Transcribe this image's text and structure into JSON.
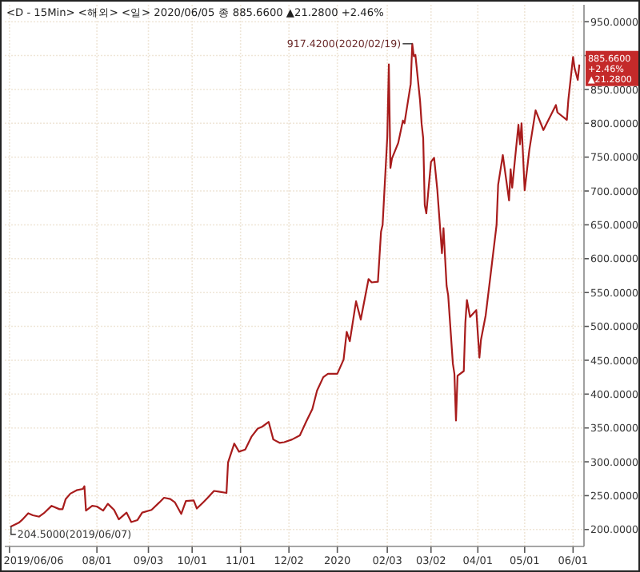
{
  "chart_data": {
    "type": "line",
    "title": "<D - 15Min> <해외> <일> 2020/06/05 종 885.6600 ▲21.2800 +2.46%",
    "xlim": [
      "2019-06-03",
      "2020-06-08"
    ],
    "xticks": [
      {
        "value": "2019-06-06",
        "label": "2019/06/06"
      },
      {
        "value": "2019-08-01",
        "label": "08/01"
      },
      {
        "value": "2019-09-03",
        "label": "09/03"
      },
      {
        "value": "2019-10-01",
        "label": "10/01"
      },
      {
        "value": "2019-11-01",
        "label": "11/01"
      },
      {
        "value": "2019-12-02",
        "label": "12/02"
      },
      {
        "value": "2020-01-02",
        "label": "2020"
      },
      {
        "value": "2020-02-03",
        "label": "02/03"
      },
      {
        "value": "2020-03-02",
        "label": "03/02"
      },
      {
        "value": "2020-04-01",
        "label": "04/01"
      },
      {
        "value": "2020-05-01",
        "label": "05/01"
      },
      {
        "value": "2020-06-01",
        "label": "06/01"
      }
    ],
    "ylim": [
      175,
      975
    ],
    "yticks": [
      {
        "value": 200,
        "label": "200.0000"
      },
      {
        "value": 250,
        "label": "250.0000"
      },
      {
        "value": 300,
        "label": "300.0000"
      },
      {
        "value": 350,
        "label": "350.0000"
      },
      {
        "value": 400,
        "label": "400.0000"
      },
      {
        "value": 450,
        "label": "450.0000"
      },
      {
        "value": 500,
        "label": "500.0000"
      },
      {
        "value": 550,
        "label": "550.0000"
      },
      {
        "value": 600,
        "label": "600.0000"
      },
      {
        "value": 650,
        "label": "650.0000"
      },
      {
        "value": 700,
        "label": "700.0000"
      },
      {
        "value": 750,
        "label": "750.0000"
      },
      {
        "value": 800,
        "label": "800.0000"
      },
      {
        "value": 850,
        "label": "850.0000"
      },
      {
        "value": 900,
        "label": null
      },
      {
        "value": 950,
        "label": "950.0000"
      }
    ],
    "grid": true,
    "marker": "none",
    "line_style": "solid",
    "annotations": [
      {
        "text": "917.4200(2020/02/19)",
        "x": "2020-02-19",
        "y": 917.42
      },
      {
        "text": "204.5000(2019/06/07)",
        "x": "2019-06-07",
        "y": 204.5
      },
      {
        "text": "885.6600 +2.46% ▲21.2800",
        "x": "2020-06-05",
        "y": 885.66
      }
    ],
    "series": [
      {
        "color": "#a81c1c",
        "x": [
          "2019-06-07",
          "2019-06-12",
          "2019-06-14",
          "2019-06-18",
          "2019-06-21",
          "2019-06-25",
          "2019-06-28",
          "2019-07-03",
          "2019-07-08",
          "2019-07-10",
          "2019-07-12",
          "2019-07-15",
          "2019-07-19",
          "2019-07-23",
          "2019-07-24",
          "2019-07-25",
          "2019-07-29",
          "2019-08-01",
          "2019-08-05",
          "2019-08-08",
          "2019-08-12",
          "2019-08-15",
          "2019-08-20",
          "2019-08-23",
          "2019-08-27",
          "2019-08-30",
          "2019-09-05",
          "2019-09-10",
          "2019-09-13",
          "2019-09-17",
          "2019-09-20",
          "2019-09-24",
          "2019-09-27",
          "2019-10-02",
          "2019-10-04",
          "2019-10-08",
          "2019-10-11",
          "2019-10-15",
          "2019-10-18",
          "2019-10-23",
          "2019-10-24",
          "2019-10-28",
          "2019-10-31",
          "2019-11-04",
          "2019-11-08",
          "2019-11-12",
          "2019-11-15",
          "2019-11-19",
          "2019-11-22",
          "2019-11-26",
          "2019-11-29",
          "2019-12-04",
          "2019-12-09",
          "2019-12-13",
          "2019-12-17",
          "2019-12-20",
          "2019-12-24",
          "2019-12-27",
          "2020-01-02",
          "2020-01-06",
          "2020-01-08",
          "2020-01-10",
          "2020-01-14",
          "2020-01-17",
          "2020-01-22",
          "2020-01-24",
          "2020-01-28",
          "2020-01-30",
          "2020-01-31",
          "2020-02-03",
          "2020-02-04",
          "2020-02-05",
          "2020-02-06",
          "2020-02-10",
          "2020-02-13",
          "2020-02-14",
          "2020-02-18",
          "2020-02-19",
          "2020-02-20",
          "2020-02-21",
          "2020-02-24",
          "2020-02-25",
          "2020-02-26",
          "2020-02-27",
          "2020-02-28",
          "2020-03-02",
          "2020-03-04",
          "2020-03-06",
          "2020-03-09",
          "2020-03-10",
          "2020-03-12",
          "2020-03-13",
          "2020-03-16",
          "2020-03-17",
          "2020-03-18",
          "2020-03-19",
          "2020-03-23",
          "2020-03-24",
          "2020-03-25",
          "2020-03-27",
          "2020-03-31",
          "2020-04-02",
          "2020-04-03",
          "2020-04-06",
          "2020-04-09",
          "2020-04-13",
          "2020-04-14",
          "2020-04-17",
          "2020-04-21",
          "2020-04-22",
          "2020-04-23",
          "2020-04-27",
          "2020-04-28",
          "2020-04-29",
          "2020-05-01",
          "2020-05-04",
          "2020-05-08",
          "2020-05-13",
          "2020-05-18",
          "2020-05-21",
          "2020-05-22",
          "2020-05-28",
          "2020-05-29",
          "2020-06-01",
          "2020-06-02",
          "2020-06-04",
          "2020-06-05"
        ],
        "values": [
          204.5,
          210,
          214,
          224,
          221,
          219,
          224,
          235,
          230,
          230,
          245,
          253,
          258,
          260,
          264,
          228,
          235,
          234,
          228,
          238,
          229,
          215,
          225,
          211,
          214,
          225,
          229,
          240,
          247,
          245,
          240,
          223,
          242,
          243,
          231,
          240,
          247,
          257,
          256,
          254,
          299,
          327,
          315,
          318,
          337,
          349,
          352,
          359,
          333,
          328,
          329,
          333,
          339,
          359,
          378,
          405,
          425,
          430,
          430,
          451,
          492,
          478,
          537,
          510,
          570,
          565,
          566,
          640,
          650,
          780,
          887,
          734,
          748,
          771,
          804,
          800,
          858,
          917.42,
          899,
          901,
          833,
          799,
          778,
          679,
          667,
          743,
          749,
          703,
          608,
          645,
          560,
          546,
          445,
          430,
          361,
          427,
          434,
          505,
          539,
          514,
          524,
          454,
          480,
          516,
          573,
          650,
          709,
          753,
          686,
          732,
          705,
          798,
          769,
          800,
          701,
          761,
          819,
          790,
          813,
          827,
          816,
          805,
          835,
          898,
          881,
          864,
          885.66
        ]
      }
    ]
  }
}
